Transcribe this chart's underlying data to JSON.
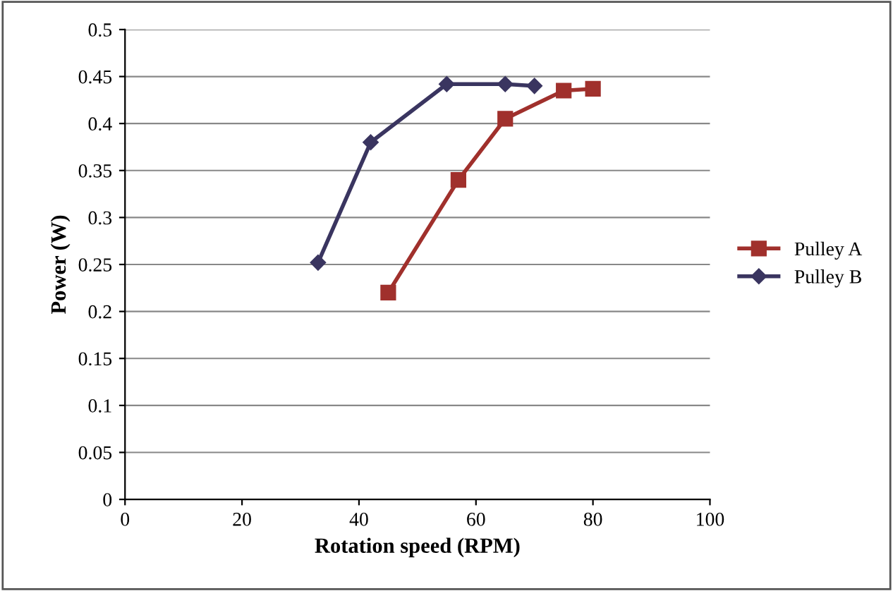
{
  "chart_data": {
    "type": "line",
    "xlabel": "Rotation speed (RPM)",
    "ylabel": "Power (W)",
    "xlim": [
      0,
      100
    ],
    "xticks": [
      0,
      20,
      40,
      60,
      80,
      100
    ],
    "ylim": [
      0,
      0.5
    ],
    "yticks": [
      0,
      0.05,
      0.1,
      0.15,
      0.2,
      0.25,
      0.3,
      0.35,
      0.4,
      0.45,
      0.5
    ],
    "grid": "y",
    "legend": "right",
    "series": [
      {
        "name": "Pulley A",
        "color": "#a0302c",
        "marker": "square",
        "x": [
          45,
          57,
          65,
          75,
          80
        ],
        "values": [
          0.22,
          0.34,
          0.405,
          0.435,
          0.437
        ]
      },
      {
        "name": "Pulley B",
        "color": "#3a3560",
        "marker": "diamond",
        "x": [
          33,
          42,
          55,
          65,
          70
        ],
        "values": [
          0.252,
          0.38,
          0.442,
          0.442,
          0.44
        ]
      }
    ]
  }
}
